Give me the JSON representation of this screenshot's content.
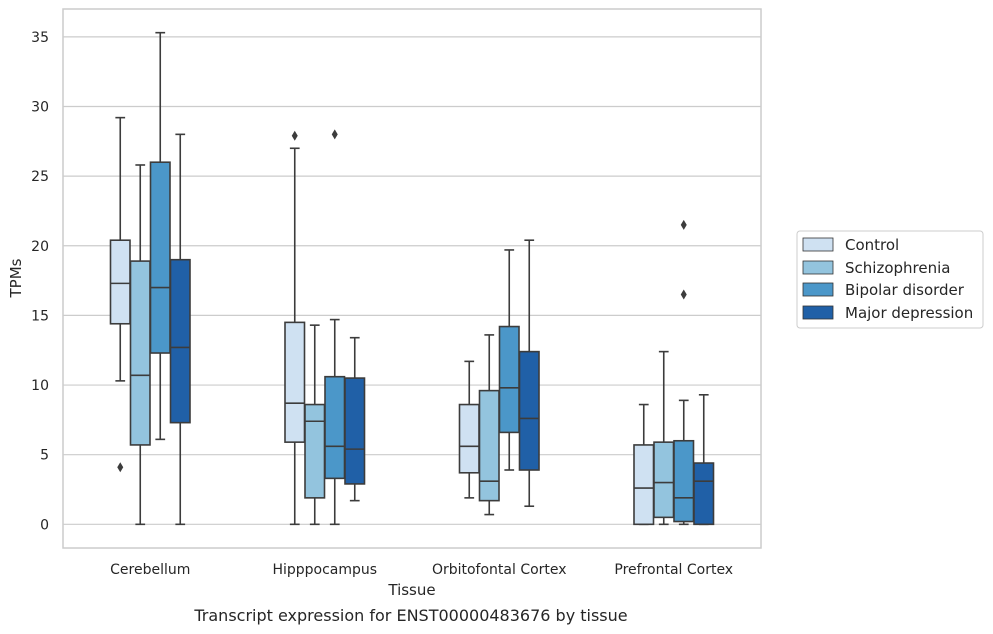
{
  "chart_data": {
    "type": "box",
    "xlabel": "Tissue",
    "ylabel": "TPMs",
    "caption": "Transcript expression for ENST00000483676 by tissue",
    "ylim": [
      -1.7,
      37
    ],
    "yticks": [
      0,
      5,
      10,
      15,
      20,
      25,
      30,
      35
    ],
    "grid": "horizontal",
    "legend_position": "right",
    "categories": [
      "Cerebellum",
      "Hipppocampus",
      "Orbitofontal Cortex",
      "Prefrontal Cortex"
    ],
    "series": [
      {
        "name": "Control",
        "color": "#cfe1f2",
        "boxes": [
          {
            "whislo": 10.3,
            "q1": 14.4,
            "med": 17.3,
            "q3": 20.4,
            "whishi": 29.2,
            "fliers": [
              4.1
            ]
          },
          {
            "whislo": 0,
            "q1": 5.9,
            "med": 8.7,
            "q3": 14.5,
            "whishi": 27.0,
            "fliers": [
              27.9
            ]
          },
          {
            "whislo": 1.9,
            "q1": 3.7,
            "med": 5.6,
            "q3": 8.6,
            "whishi": 11.7,
            "fliers": []
          },
          {
            "whislo": 0,
            "q1": 0,
            "med": 2.6,
            "q3": 5.7,
            "whishi": 8.6,
            "fliers": []
          }
        ]
      },
      {
        "name": "Schizophrenia",
        "color": "#93c4de",
        "boxes": [
          {
            "whislo": 0,
            "q1": 5.7,
            "med": 10.7,
            "q3": 18.9,
            "whishi": 25.8,
            "fliers": []
          },
          {
            "whislo": 0,
            "q1": 1.9,
            "med": 7.4,
            "q3": 8.6,
            "whishi": 14.3,
            "fliers": []
          },
          {
            "whislo": 0.7,
            "q1": 1.7,
            "med": 3.1,
            "q3": 9.6,
            "whishi": 13.6,
            "fliers": []
          },
          {
            "whislo": 0,
            "q1": 0.5,
            "med": 3.0,
            "q3": 5.9,
            "whishi": 12.4,
            "fliers": []
          }
        ]
      },
      {
        "name": "Bipolar disorder",
        "color": "#4b97c9",
        "boxes": [
          {
            "whislo": 6.1,
            "q1": 12.3,
            "med": 17.0,
            "q3": 26.0,
            "whishi": 35.3,
            "fliers": []
          },
          {
            "whislo": 0,
            "q1": 3.3,
            "med": 5.6,
            "q3": 10.6,
            "whishi": 14.7,
            "fliers": [
              28.0
            ]
          },
          {
            "whislo": 3.9,
            "q1": 6.6,
            "med": 9.8,
            "q3": 14.2,
            "whishi": 19.7,
            "fliers": []
          },
          {
            "whislo": 0,
            "q1": 0.2,
            "med": 1.9,
            "q3": 6.0,
            "whishi": 8.9,
            "fliers": [
              16.5,
              21.5
            ]
          }
        ]
      },
      {
        "name": "Major depression",
        "color": "#2060a7",
        "boxes": [
          {
            "whislo": 0,
            "q1": 7.3,
            "med": 12.7,
            "q3": 19.0,
            "whishi": 28.0,
            "fliers": []
          },
          {
            "whislo": 1.7,
            "q1": 2.9,
            "med": 5.4,
            "q3": 10.5,
            "whishi": 13.4,
            "fliers": []
          },
          {
            "whislo": 1.3,
            "q1": 3.9,
            "med": 7.6,
            "q3": 12.4,
            "whishi": 20.4,
            "fliers": []
          },
          {
            "whislo": 0,
            "q1": 0,
            "med": 3.1,
            "q3": 4.4,
            "whishi": 9.3,
            "fliers": []
          }
        ]
      }
    ]
  }
}
